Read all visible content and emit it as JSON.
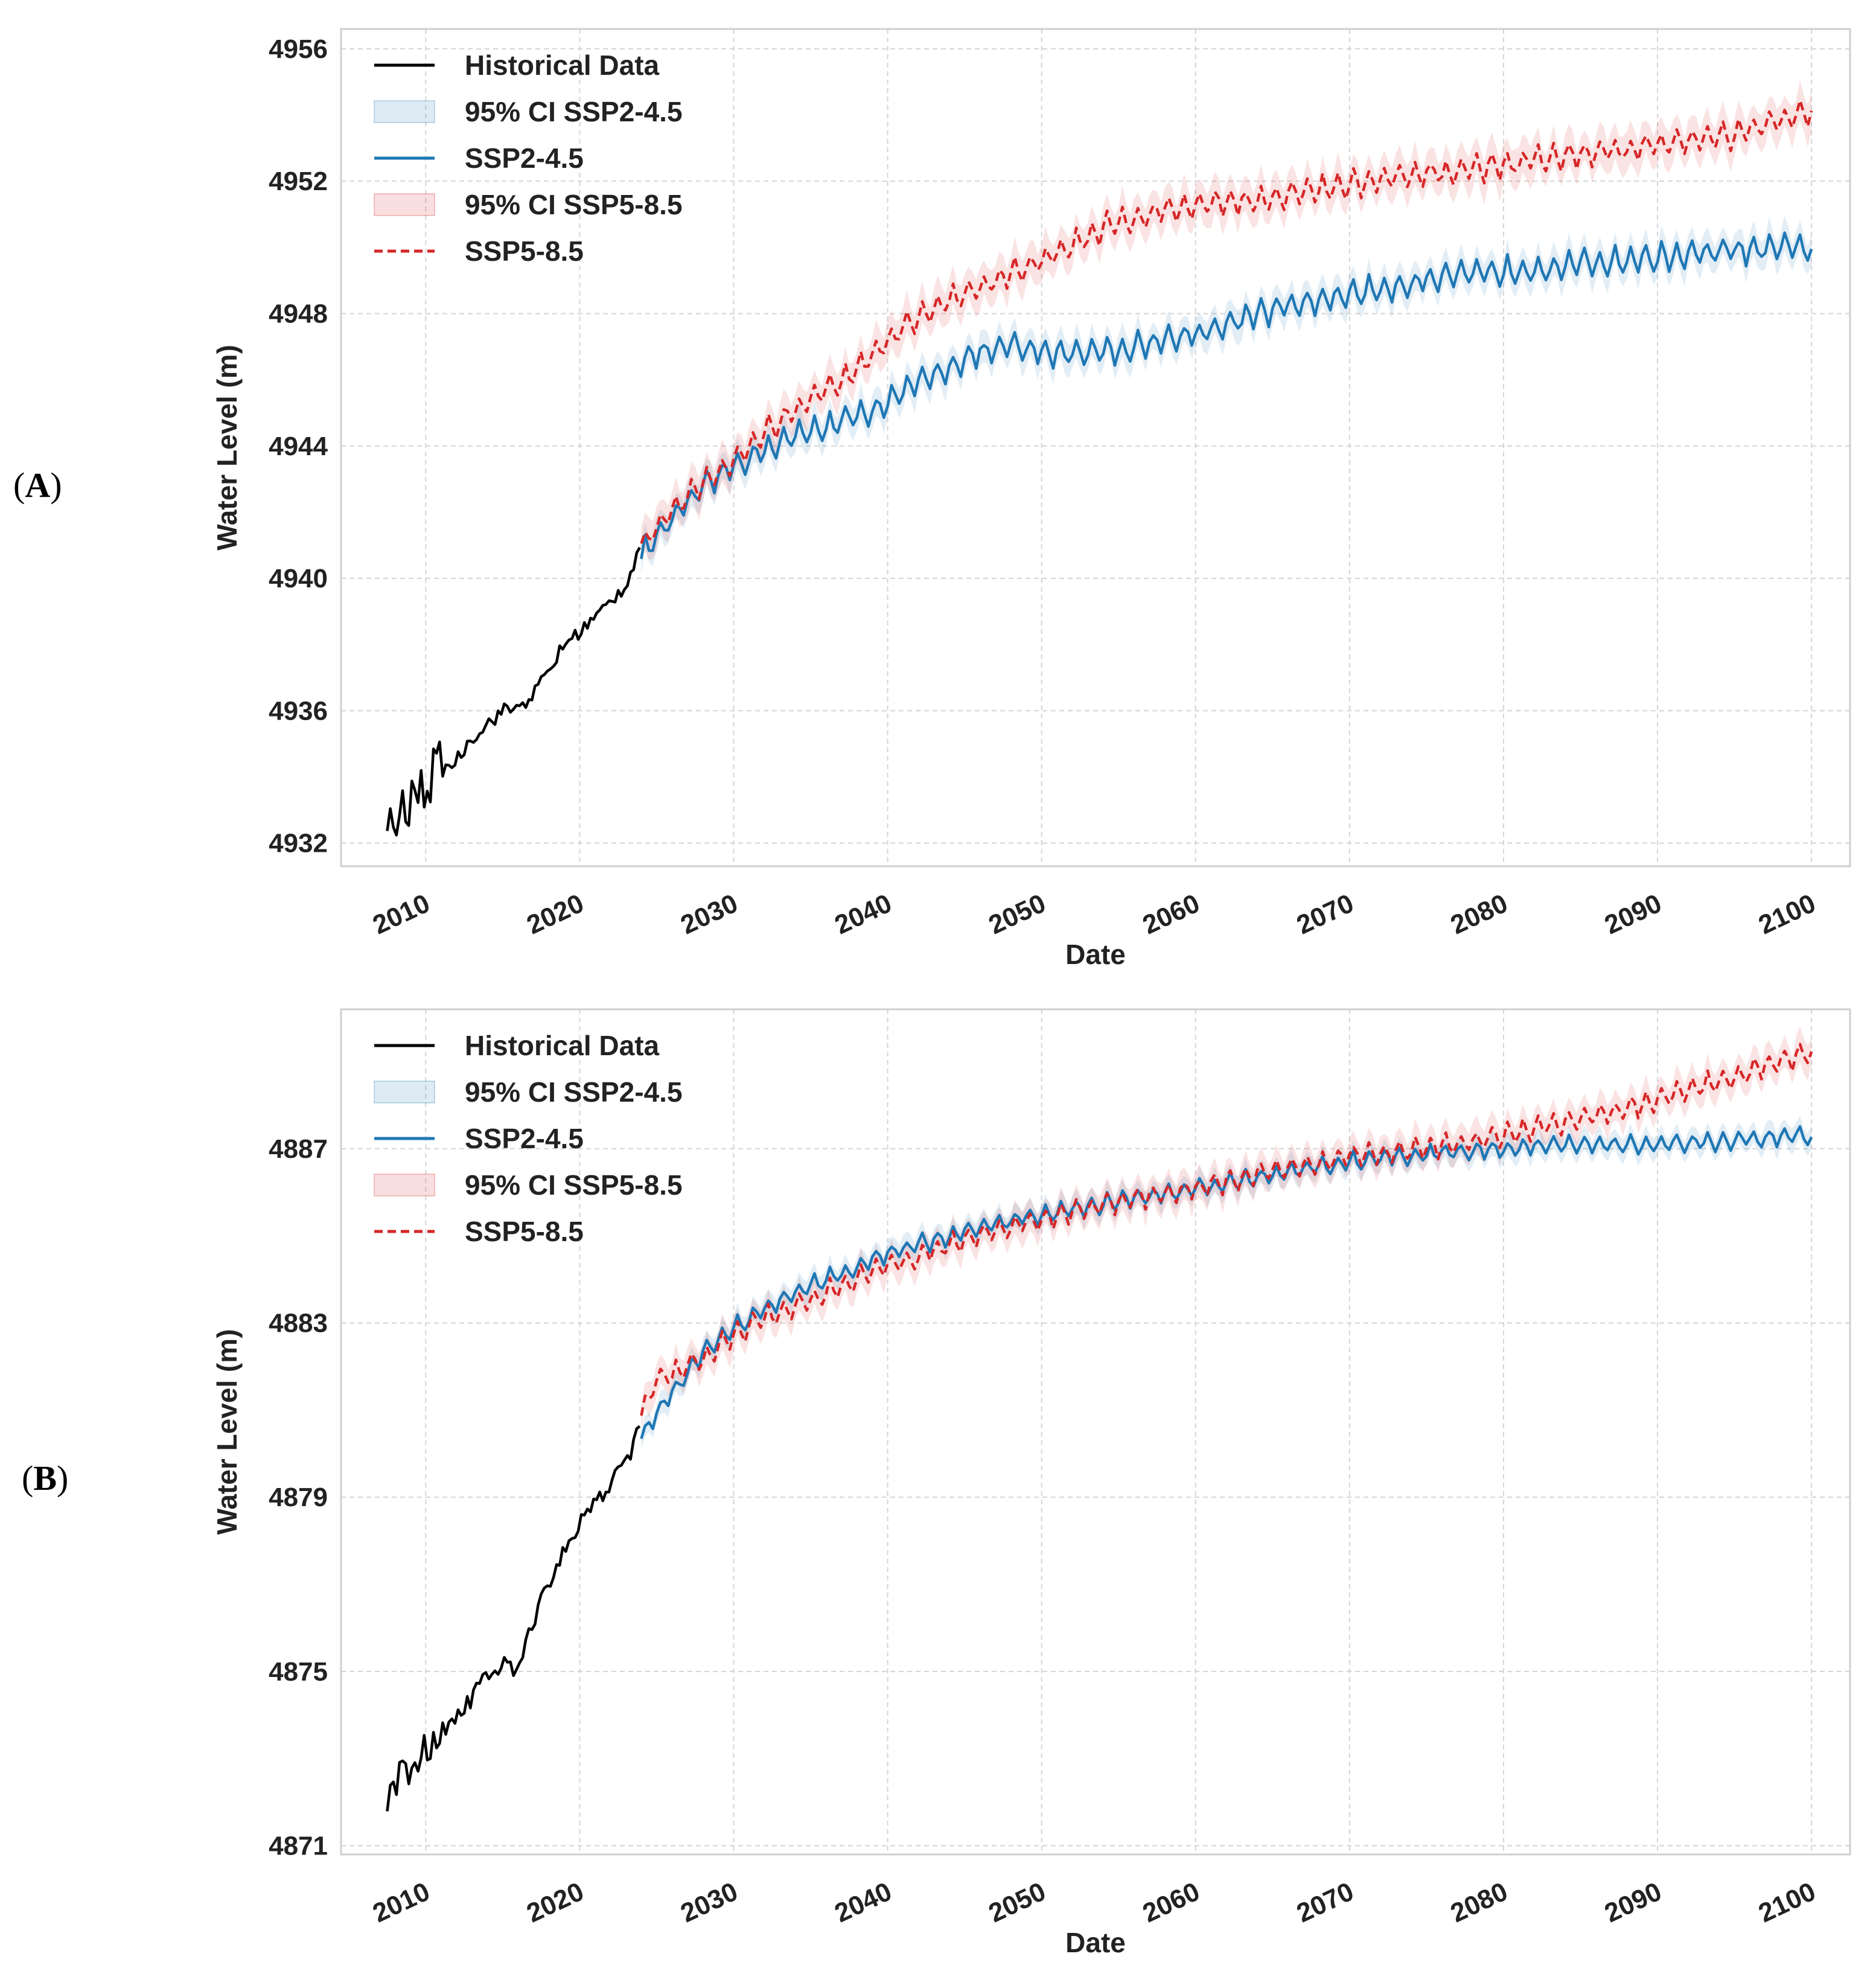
{
  "figure": {
    "panels": [
      {
        "label_prefix": "(",
        "label": "A",
        "label_suffix": ")"
      },
      {
        "label_prefix": "(",
        "label": "B",
        "label_suffix": ")"
      }
    ]
  },
  "chart_data": [
    {
      "type": "line",
      "panel": "A",
      "title": "",
      "xlabel": "Date",
      "ylabel": "Water Level (m)",
      "xlim": [
        2004.5,
        2102.5
      ],
      "ylim": [
        4931.3,
        4956.6
      ],
      "x_ticks": [
        2010,
        2020,
        2030,
        2040,
        2050,
        2060,
        2070,
        2080,
        2090,
        2100
      ],
      "y_ticks": [
        4932,
        4936,
        4940,
        4944,
        4948,
        4952,
        4956
      ],
      "grid": true,
      "legend": {
        "position": "top-left",
        "entries": [
          "Historical Data",
          "95% CI SSP2-4.5",
          "SSP2-4.5",
          "95% CI SSP5-8.5",
          "SSP5-8.5"
        ]
      },
      "series": [
        {
          "name": "Historical Data",
          "color": "#000000",
          "style": "solid",
          "x": [
            2007.5,
            2008,
            2009,
            2010,
            2011,
            2012,
            2013,
            2014,
            2015,
            2016,
            2017,
            2018,
            2019,
            2020,
            2021,
            2022,
            2023,
            2024
          ],
          "y": [
            4932.6,
            4932.4,
            4933.0,
            4933.6,
            4934.2,
            4934.5,
            4935.2,
            4935.6,
            4936.0,
            4936.1,
            4936.5,
            4937.2,
            4938.0,
            4938.4,
            4938.8,
            4939.3,
            4939.8,
            4941.1
          ]
        },
        {
          "name": "SSP2-4.5",
          "color": "#1f77b4",
          "style": "solid",
          "x": [
            2024,
            2026,
            2028,
            2030,
            2032,
            2034,
            2036,
            2038,
            2040,
            2042,
            2044,
            2046,
            2048,
            2050,
            2055,
            2060,
            2065,
            2070,
            2075,
            2080,
            2085,
            2090,
            2095,
            2100
          ],
          "y": [
            4940.7,
            4941.8,
            4942.7,
            4943.4,
            4943.9,
            4944.3,
            4944.6,
            4944.9,
            4945.3,
            4945.9,
            4946.4,
            4946.8,
            4947.0,
            4946.8,
            4946.9,
            4947.4,
            4948.1,
            4948.6,
            4949.0,
            4949.3,
            4949.5,
            4949.7,
            4949.9,
            4950.0
          ]
        },
        {
          "name": "SSP5-8.5",
          "color": "#d62728",
          "style": "dashed",
          "x": [
            2024,
            2026,
            2028,
            2030,
            2032,
            2034,
            2036,
            2038,
            2040,
            2042,
            2044,
            2046,
            2048,
            2050,
            2055,
            2060,
            2065,
            2070,
            2075,
            2080,
            2085,
            2090,
            2095,
            2100
          ],
          "y": [
            4941.0,
            4942.0,
            4942.9,
            4943.6,
            4944.4,
            4945.1,
            4945.7,
            4946.3,
            4947.2,
            4947.9,
            4948.4,
            4948.8,
            4949.2,
            4949.6,
            4950.8,
            4951.3,
            4951.5,
            4951.9,
            4952.2,
            4952.5,
            4952.8,
            4953.1,
            4953.4,
            4954.1
          ]
        }
      ]
    },
    {
      "type": "line",
      "panel": "B",
      "title": "",
      "xlabel": "Date",
      "ylabel": "Water Level (m)",
      "xlim": [
        2004.5,
        2102.5
      ],
      "ylim": [
        4870.8,
        4890.2
      ],
      "x_ticks": [
        2010,
        2020,
        2030,
        2040,
        2050,
        2060,
        2070,
        2080,
        2090,
        2100
      ],
      "y_ticks": [
        4871,
        4875,
        4879,
        4883,
        4887
      ],
      "grid": true,
      "legend": {
        "position": "top-left",
        "entries": [
          "Historical Data",
          "95% CI SSP2-4.5",
          "SSP2-4.5",
          "95% CI SSP5-8.5",
          "SSP5-8.5"
        ]
      },
      "series": [
        {
          "name": "Historical Data",
          "color": "#000000",
          "style": "solid",
          "x": [
            2007.5,
            2008,
            2009,
            2010,
            2011,
            2012,
            2013,
            2014,
            2015,
            2016,
            2017,
            2018,
            2019,
            2020,
            2021,
            2022,
            2023,
            2024
          ],
          "y": [
            4872.0,
            4872.3,
            4872.7,
            4873.1,
            4873.6,
            4874.0,
            4874.4,
            4874.9,
            4875.2,
            4875.0,
            4876.2,
            4877.0,
            4877.8,
            4878.4,
            4878.8,
            4879.3,
            4879.8,
            4880.7
          ]
        },
        {
          "name": "SSP2-4.5",
          "color": "#1f77b4",
          "style": "solid",
          "x": [
            2024,
            2026,
            2028,
            2030,
            2032,
            2034,
            2036,
            2038,
            2040,
            2045,
            2050,
            2055,
            2060,
            2065,
            2070,
            2075,
            2080,
            2085,
            2090,
            2095,
            2100
          ],
          "y": [
            4880.4,
            4881.4,
            4882.3,
            4882.9,
            4883.3,
            4883.7,
            4884.0,
            4884.3,
            4884.6,
            4885.1,
            4885.5,
            4885.8,
            4886.1,
            4886.4,
            4886.7,
            4886.9,
            4887.0,
            4887.1,
            4887.1,
            4887.2,
            4887.3
          ]
        },
        {
          "name": "SSP5-8.5",
          "color": "#d62728",
          "style": "dashed",
          "x": [
            2024,
            2025,
            2026,
            2028,
            2030,
            2032,
            2034,
            2036,
            2038,
            2040,
            2045,
            2050,
            2055,
            2060,
            2065,
            2070,
            2075,
            2080,
            2085,
            2090,
            2095,
            2100
          ],
          "y": [
            4880.9,
            4881.7,
            4881.8,
            4882.2,
            4882.7,
            4883.1,
            4883.4,
            4883.7,
            4884.0,
            4884.3,
            4884.9,
            4885.4,
            4885.8,
            4886.1,
            4886.5,
            4886.8,
            4887.0,
            4887.3,
            4887.7,
            4888.1,
            4888.7,
            4889.2
          ]
        }
      ]
    }
  ]
}
